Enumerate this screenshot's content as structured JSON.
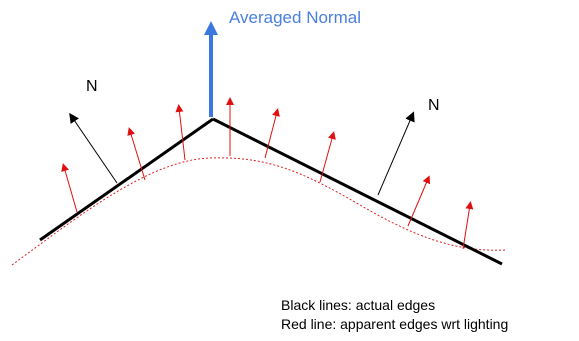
{
  "labels": {
    "averaged_normal": "Averaged Normal",
    "normal_left": "N",
    "normal_right": "N"
  },
  "legend": {
    "black": "Black lines: actual edges",
    "red": "Red line: apparent edges wrt lighting"
  },
  "colors": {
    "edge": "#000000",
    "apparent_edge": "#e02020",
    "red_normal": "#e01010",
    "averaged_normal": "#3a78e0",
    "label_blue": "#4a7fe0"
  },
  "icons": [
    "arrow-up-icon"
  ]
}
